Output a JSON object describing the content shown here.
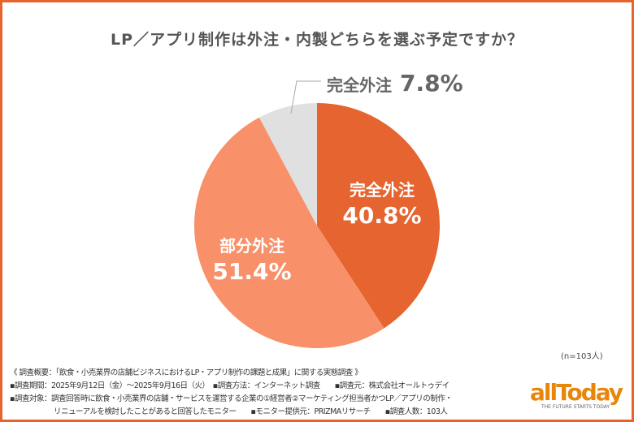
{
  "chart_data": {
    "type": "pie",
    "title": "LP／アプリ制作は外注・内製どちらを選ぶ予定ですか？",
    "slices": [
      {
        "label": "完全外注",
        "value": 40.8,
        "display": "40.8%",
        "color": "#e5642f"
      },
      {
        "label": "部分外注",
        "value": 51.4,
        "display": "51.4%",
        "color": "#f8906a"
      },
      {
        "label": "完全外注",
        "value": 7.8,
        "display": "7.8%",
        "color": "#e0e0e0"
      }
    ],
    "start": "top",
    "direction": "clockwise",
    "sample_note": "(n=103人)"
  },
  "footer": {
    "line1": "《 調査概要：「飲食・小売業界の店舗ビジネスにおけるLP・アプリ制作の課題と成果」に関する実態調査 》",
    "line2": "▪調査期間：2025年9月12日（金）～2025年9月16日（火）　▪調査方法：インターネット調査　　▪調査元：株式会社オールトゥデイ",
    "line3": "▪調査対象：調査回答時に飲食・小売業界の店舗・サービスを運営する企業の①経営者②マーケティング担当者かつLP／アプリの制作・",
    "line4": "　　　　　　リニューアルを検討したことがあると回答したモニター　　▪モニター提供元：PRIZMAリサーチ　　▪調査人数：103人"
  },
  "logo": {
    "name": "allToday",
    "tagline": "THE FUTURE STARTS TODAY",
    "color": "#e8860c"
  },
  "frame_color": "#e8632c"
}
